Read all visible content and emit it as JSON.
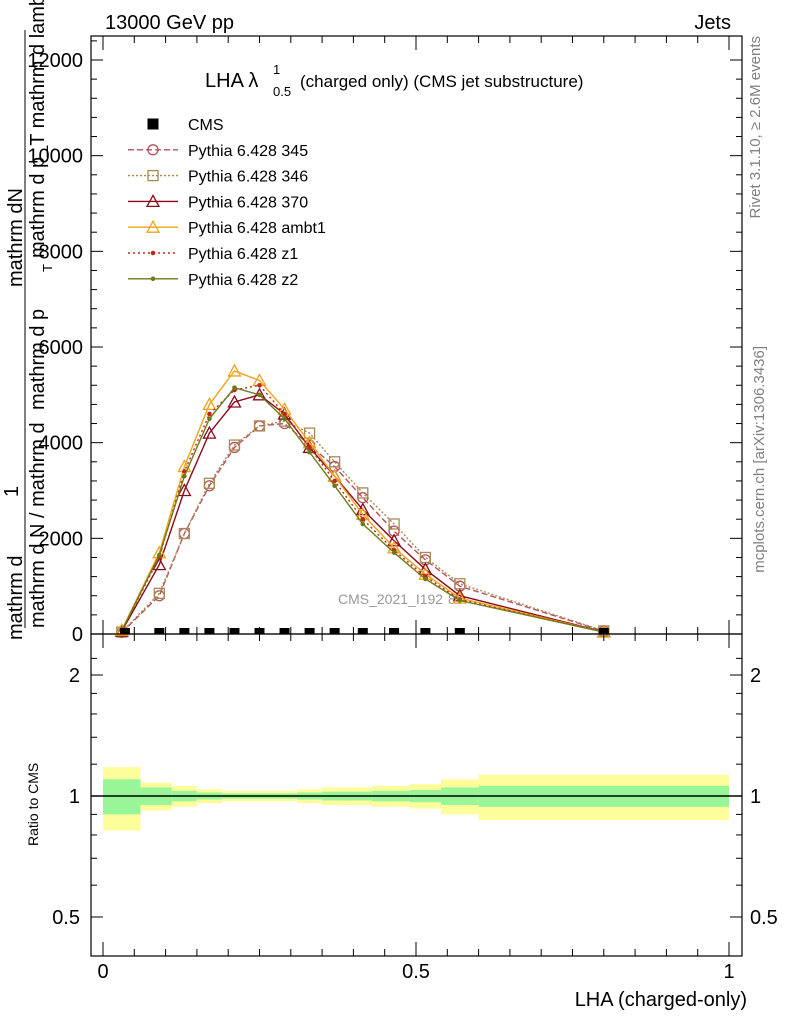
{
  "header": {
    "left": "13000 GeV pp",
    "right": "Jets"
  },
  "side": {
    "rivet": "Rivet 3.1.10, ≥ 2.6M events",
    "mcplots": "mcplots.cern.ch [arXiv:1306.3436]"
  },
  "chart_data": [
    {
      "type": "line",
      "title_main": "LHA λ",
      "title_sup": "1",
      "title_sub": "0.5",
      "title_rest": "(charged only) (CMS jet substructure)",
      "ylabel_top": "mathrm dN",
      "ylabel_bottom": "mathrm d p_T mathrm d lambda",
      "ylabel_extra": "mathrm d p",
      "ylabel_sub": "T",
      "ylabel_one": "1",
      "ylabel_left_bottom": "mathrm d N / mathrm d",
      "ylabel_left_frag": "mathrm d",
      "ylim": [
        0,
        12400
      ],
      "xlim": [
        0,
        1
      ],
      "yticks": [
        "0",
        "2000",
        "4000",
        "6000",
        "8000",
        "10000",
        "12000"
      ],
      "watermark": "CMS_2021_I192",
      "watermark_tail": "87",
      "legend": [
        {
          "name": "CMS",
          "color": "#000000",
          "marker": "square-filled",
          "dash": "none"
        },
        {
          "name": "Pythia 6.428 345",
          "color": "#b5525c",
          "marker": "circle-open",
          "dash": "6,3"
        },
        {
          "name": "Pythia 6.428 346",
          "color": "#a88a55",
          "marker": "square-open",
          "dash": "2,2"
        },
        {
          "name": "Pythia 6.428 370",
          "color": "#8b0a1a",
          "marker": "triangle-open",
          "dash": "none"
        },
        {
          "name": "Pythia 6.428 ambt1",
          "color": "#f2a31b",
          "marker": "triangle-open",
          "dash": "none"
        },
        {
          "name": "Pythia 6.428 z1",
          "color": "#c0281c",
          "marker": "dot",
          "dash": "2,3"
        },
        {
          "name": "Pythia 6.428 z2",
          "color": "#6e7a17",
          "marker": "dot",
          "dash": "none"
        }
      ],
      "cms_x": [
        0.035,
        0.09,
        0.13,
        0.17,
        0.21,
        0.25,
        0.29,
        0.33,
        0.37,
        0.415,
        0.465,
        0.515,
        0.57,
        0.8
      ],
      "series": [
        {
          "name": "Pythia 6.428 345",
          "x": [
            0.03,
            0.09,
            0.13,
            0.17,
            0.21,
            0.25,
            0.29,
            0.33,
            0.37,
            0.415,
            0.465,
            0.515,
            0.57,
            0.8
          ],
          "values": [
            30,
            800,
            2100,
            3100,
            3900,
            4350,
            4400,
            3950,
            3500,
            2850,
            2150,
            1550,
            1000,
            60
          ]
        },
        {
          "name": "Pythia 6.428 346",
          "x": [
            0.03,
            0.09,
            0.13,
            0.17,
            0.21,
            0.25,
            0.29,
            0.33,
            0.37,
            0.415,
            0.465,
            0.515,
            0.57,
            0.8
          ],
          "values": [
            40,
            850,
            2100,
            3150,
            3950,
            4350,
            4450,
            4200,
            3600,
            2950,
            2300,
            1600,
            1050,
            65
          ]
        },
        {
          "name": "Pythia 6.428 370",
          "x": [
            0.03,
            0.09,
            0.13,
            0.17,
            0.21,
            0.25,
            0.29,
            0.33,
            0.37,
            0.415,
            0.465,
            0.515,
            0.57,
            0.8
          ],
          "values": [
            60,
            1450,
            3000,
            4200,
            4850,
            5000,
            4600,
            3900,
            3300,
            2600,
            1950,
            1350,
            800,
            45
          ]
        },
        {
          "name": "Pythia 6.428 ambt1",
          "x": [
            0.03,
            0.09,
            0.13,
            0.17,
            0.21,
            0.25,
            0.29,
            0.33,
            0.37,
            0.415,
            0.465,
            0.515,
            0.57,
            0.8
          ],
          "values": [
            80,
            1700,
            3500,
            4800,
            5500,
            5300,
            4700,
            4000,
            3300,
            2500,
            1800,
            1250,
            750,
            40
          ]
        },
        {
          "name": "Pythia 6.428 z1",
          "x": [
            0.03,
            0.09,
            0.13,
            0.17,
            0.21,
            0.25,
            0.29,
            0.33,
            0.37,
            0.415,
            0.465,
            0.515,
            0.57,
            0.8
          ],
          "values": [
            70,
            1600,
            3400,
            4600,
            5100,
            5200,
            4600,
            3900,
            3200,
            2400,
            1750,
            1200,
            720,
            40
          ]
        },
        {
          "name": "Pythia 6.428 z2",
          "x": [
            0.03,
            0.09,
            0.13,
            0.17,
            0.21,
            0.25,
            0.29,
            0.33,
            0.37,
            0.415,
            0.465,
            0.515,
            0.57,
            0.8
          ],
          "values": [
            70,
            1650,
            3300,
            4500,
            5150,
            5000,
            4500,
            3800,
            3100,
            2300,
            1700,
            1150,
            700,
            40
          ]
        }
      ]
    },
    {
      "type": "area",
      "ylabel": "Ratio to CMS",
      "xlabel": "LHA (charged-only)",
      "ylim": [
        0.4,
        2.3
      ],
      "xlim": [
        0,
        1
      ],
      "yticks": [
        "0.5",
        "1",
        "2"
      ],
      "xticks": [
        "0",
        "0.5",
        "1"
      ],
      "bin_edges": [
        0,
        0.06,
        0.11,
        0.15,
        0.19,
        0.23,
        0.27,
        0.31,
        0.35,
        0.39,
        0.43,
        0.49,
        0.54,
        0.6,
        1.0
      ],
      "green_band": [
        [
          0.9,
          1.1
        ],
        [
          0.95,
          1.05
        ],
        [
          0.97,
          1.03
        ],
        [
          0.98,
          1.02
        ],
        [
          0.985,
          1.015
        ],
        [
          0.985,
          1.015
        ],
        [
          0.985,
          1.015
        ],
        [
          0.98,
          1.02
        ],
        [
          0.975,
          1.025
        ],
        [
          0.975,
          1.025
        ],
        [
          0.97,
          1.03
        ],
        [
          0.965,
          1.035
        ],
        [
          0.95,
          1.05
        ],
        [
          0.94,
          1.06
        ]
      ],
      "yellow_band": [
        [
          0.82,
          1.18
        ],
        [
          0.92,
          1.08
        ],
        [
          0.94,
          1.06
        ],
        [
          0.96,
          1.04
        ],
        [
          0.97,
          1.03
        ],
        [
          0.97,
          1.03
        ],
        [
          0.97,
          1.03
        ],
        [
          0.96,
          1.04
        ],
        [
          0.95,
          1.05
        ],
        [
          0.95,
          1.05
        ],
        [
          0.94,
          1.06
        ],
        [
          0.93,
          1.07
        ],
        [
          0.9,
          1.1
        ],
        [
          0.87,
          1.13
        ]
      ],
      "colors": {
        "green": "#98f598",
        "yellow": "#fdfd9c"
      }
    }
  ]
}
